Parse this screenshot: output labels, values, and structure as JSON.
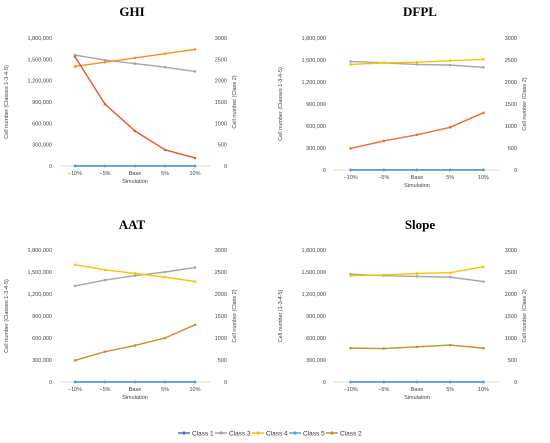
{
  "chart_data": [
    {
      "type": "line",
      "title": "GHI",
      "xlabel": "Simulation",
      "ylabel": "Cell number (Classes 1-3-4-5)",
      "y2label": "Cell number (Class 2)",
      "categories": [
        "−10%",
        "−5%",
        "Base",
        "5%",
        "10%"
      ],
      "ylim": [
        0,
        1800000
      ],
      "y2lim": [
        0,
        3000
      ],
      "yticks": [
        "0",
        "300,000",
        "600,000",
        "900,000",
        "1,200,000",
        "1,500,000",
        "1,800,000"
      ],
      "y2ticks": [
        "0",
        "500",
        "1000",
        "1500",
        "2000",
        "2500",
        "3000"
      ],
      "grid": false,
      "series": [
        {
          "name": "Class 1",
          "axis": "left",
          "values": [
            0,
            0,
            0,
            0,
            0
          ]
        },
        {
          "name": "Class 3",
          "axis": "left",
          "values": [
            1560000,
            1490000,
            1440000,
            1390000,
            1330000
          ]
        },
        {
          "name": "Class 4",
          "axis": "left",
          "values": [
            1400000,
            1460000,
            1520000,
            1580000,
            1640000
          ]
        },
        {
          "name": "Class 5",
          "axis": "left",
          "values": [
            2000,
            2000,
            2000,
            2000,
            2000
          ]
        },
        {
          "name": "Class 2",
          "axis": "right",
          "values": [
            2560,
            1450,
            820,
            380,
            190
          ]
        }
      ]
    },
    {
      "type": "line",
      "title": "DFPL",
      "xlabel": "Simulation",
      "ylabel": "Cell number (Classes 1-3-4-5)",
      "y2label": "Cell number (Class 2)",
      "categories": [
        "−10%",
        "−5%",
        "Base",
        "5%",
        "10%"
      ],
      "ylim": [
        0,
        1800000
      ],
      "y2lim": [
        0,
        3000
      ],
      "yticks": [
        "0",
        "300,000",
        "600,000",
        "900,000",
        "1,200,000",
        "1,500,000",
        "1,800,000"
      ],
      "y2ticks": [
        "0",
        "500",
        "1000",
        "1500",
        "2000",
        "2500",
        "3000"
      ],
      "grid": false,
      "series": [
        {
          "name": "Class 1",
          "axis": "left",
          "values": [
            0,
            0,
            0,
            0,
            0
          ]
        },
        {
          "name": "Class 3",
          "axis": "left",
          "values": [
            1480000,
            1460000,
            1440000,
            1430000,
            1400000
          ]
        },
        {
          "name": "Class 4",
          "axis": "left",
          "values": [
            1440000,
            1460000,
            1470000,
            1490000,
            1510000
          ]
        },
        {
          "name": "Class 5",
          "axis": "left",
          "values": [
            2000,
            2000,
            2000,
            2000,
            2000
          ]
        },
        {
          "name": "Class 2",
          "axis": "right",
          "values": [
            490,
            660,
            800,
            970,
            1300
          ]
        }
      ]
    },
    {
      "type": "line",
      "title": "AAT",
      "xlabel": "Simulation",
      "ylabel": "Cell number (Classes 1-3-4-5)",
      "y2label": "Cell number (Class 2)",
      "categories": [
        "−10%",
        "−5%",
        "Base",
        "5%",
        "10%"
      ],
      "ylim": [
        0,
        1800000
      ],
      "y2lim": [
        0,
        3000
      ],
      "yticks": [
        "0",
        "300,000",
        "600,000",
        "900,000",
        "1,200,000",
        "1,500,000",
        "1,800,000"
      ],
      "y2ticks": [
        "0",
        "500",
        "1000",
        "1500",
        "2000",
        "2500",
        "3000"
      ],
      "grid": false,
      "series": [
        {
          "name": "Class 1",
          "axis": "left",
          "values": [
            0,
            0,
            0,
            0,
            0
          ]
        },
        {
          "name": "Class 3",
          "axis": "left",
          "values": [
            1310000,
            1390000,
            1450000,
            1500000,
            1560000
          ]
        },
        {
          "name": "Class 4",
          "axis": "left",
          "values": [
            1600000,
            1530000,
            1480000,
            1430000,
            1370000
          ]
        },
        {
          "name": "Class 5",
          "axis": "left",
          "values": [
            2000,
            2000,
            2000,
            2000,
            2000
          ]
        },
        {
          "name": "Class 2",
          "axis": "right",
          "values": [
            490,
            690,
            830,
            1000,
            1300
          ]
        }
      ]
    },
    {
      "type": "line",
      "title": "Slope",
      "xlabel": "Simulation",
      "ylabel": "Cell number (1-3-4-5)",
      "y2label": "Cell number (Class 2)",
      "categories": [
        "−10%",
        "−5%",
        "Base",
        "5%",
        "10%"
      ],
      "ylim": [
        0,
        1800000
      ],
      "y2lim": [
        0,
        3000
      ],
      "yticks": [
        "0",
        "300,000",
        "600,000",
        "900,000",
        "1,200,000",
        "1,500,000",
        "1,800,000"
      ],
      "y2ticks": [
        "0",
        "500",
        "1000",
        "1500",
        "2000",
        "2500",
        "3000"
      ],
      "grid": false,
      "series": [
        {
          "name": "Class 1",
          "axis": "left",
          "values": [
            0,
            0,
            0,
            0,
            0
          ]
        },
        {
          "name": "Class 3",
          "axis": "left",
          "values": [
            1470000,
            1450000,
            1440000,
            1430000,
            1370000
          ]
        },
        {
          "name": "Class 4",
          "axis": "left",
          "values": [
            1450000,
            1460000,
            1480000,
            1490000,
            1570000
          ]
        },
        {
          "name": "Class 5",
          "axis": "left",
          "values": [
            2000,
            2000,
            2000,
            2000,
            2000
          ]
        },
        {
          "name": "Class 2",
          "axis": "right",
          "values": [
            770,
            760,
            800,
            840,
            770
          ]
        }
      ]
    }
  ],
  "legend": {
    "placement": "bottom",
    "items": [
      {
        "name": "Class 1",
        "color": "#4472c4"
      },
      {
        "name": "Class 3",
        "color": "#a5a5a5"
      },
      {
        "name": "Class 4",
        "color": "#ffc000"
      },
      {
        "name": "Class 5",
        "color": "#5b9bd5"
      },
      {
        "name": "Class 2",
        "color": "#c5902d"
      }
    ]
  },
  "colors": {
    "Class 1": "#4472c4",
    "Class 3": "#a5a5a5",
    "Class 4": "#ffc000",
    "Class 5": "#5b9bd5",
    "Class 2": "#c5902d",
    "GHI Class 4": "#ff8c1a",
    "GHI Class 2": "#e8542a",
    "DFPL Class 2": "#ed6d2d"
  }
}
